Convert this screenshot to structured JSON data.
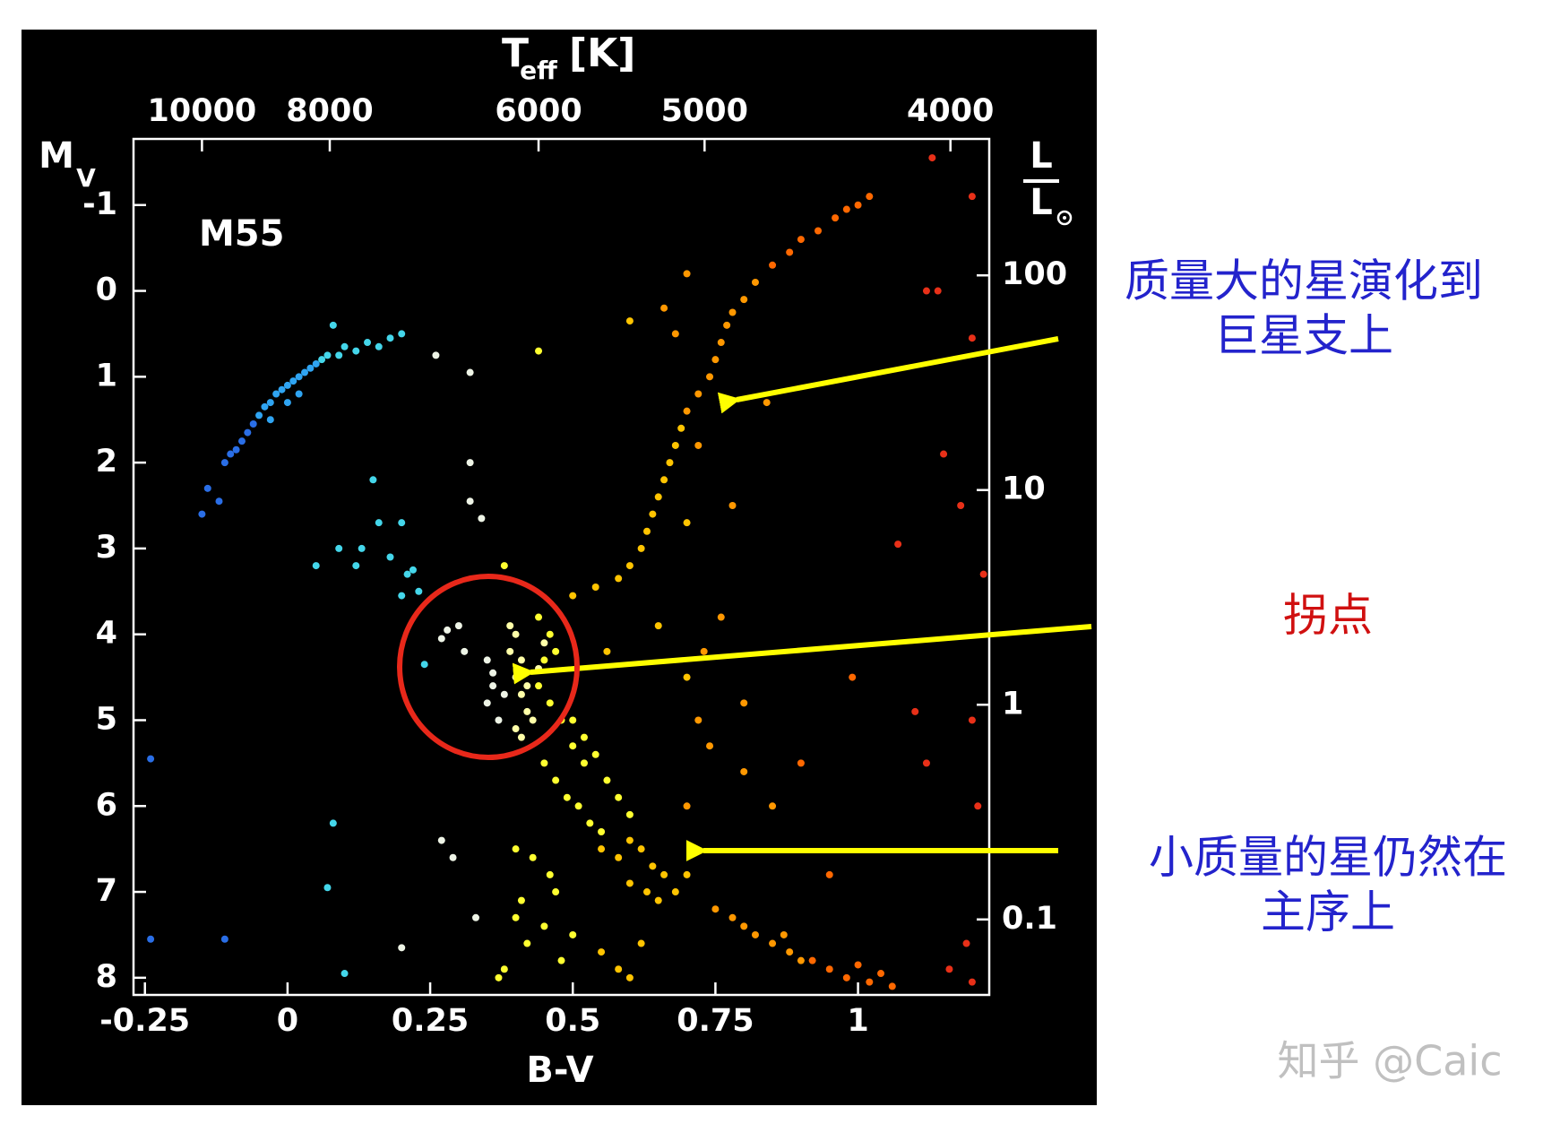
{
  "chart_data": {
    "type": "scatter",
    "label": "M55",
    "xlabel": "B-V",
    "ylabel": {
      "main": "M",
      "sub": "V"
    },
    "x2label": {
      "main": "T",
      "sub": "eff",
      "unit": "[K]"
    },
    "y2label": {
      "num": "L",
      "den": "L"
    },
    "xlim": [
      -0.27,
      1.23
    ],
    "xticks": [
      -0.25,
      0,
      0.25,
      0.5,
      0.75,
      1
    ],
    "ylim": [
      8.2,
      -1.77
    ],
    "yticks": [
      -1,
      0,
      1,
      2,
      3,
      4,
      5,
      6,
      7,
      8
    ],
    "x2ticks": [
      10000,
      8000,
      6000,
      5000,
      4000
    ],
    "x2tick_bv": [
      -0.15,
      0.074,
      0.44,
      0.731,
      1.162
    ],
    "y2lim": [
      0.0445,
      432
    ],
    "y2ticks": [
      0.1,
      1,
      10,
      100
    ],
    "y2log": true,
    "background": "#000000",
    "axis_color": "#ffffff",
    "series": [
      {
        "color": "#2a6ee6",
        "x": [
          -0.24,
          -0.24,
          -0.11,
          -0.15,
          -0.14,
          -0.12,
          -0.11,
          -0.1,
          -0.09,
          -0.08,
          -0.07,
          -0.06
        ],
        "y": [
          5.45,
          7.55,
          7.55,
          2.6,
          2.3,
          2.45,
          2.0,
          1.9,
          1.85,
          1.75,
          1.65,
          1.55
        ]
      },
      {
        "color": "#2fa4f2",
        "x": [
          -0.05,
          -0.04,
          -0.03,
          -0.02,
          -0.01,
          0,
          0.01,
          0.02,
          0.03,
          0.04,
          0.05,
          -0.03,
          0,
          0.02
        ],
        "y": [
          1.45,
          1.35,
          1.3,
          1.2,
          1.15,
          1.1,
          1.05,
          1.0,
          0.95,
          0.9,
          0.85,
          1.5,
          1.3,
          1.2
        ]
      },
      {
        "color": "#44d6ea",
        "x": [
          0.06,
          0.07,
          0.08,
          0.09,
          0.1,
          0.12,
          0.14,
          0.16,
          0.18,
          0.2,
          0.05,
          0.09,
          0.15,
          0.16,
          0.2,
          0.12,
          0.18,
          0.21,
          0.22,
          0.23,
          0.2,
          0.13,
          0.08,
          0.07,
          0.1,
          0.24
        ],
        "y": [
          0.8,
          0.75,
          0.4,
          0.75,
          0.65,
          0.7,
          0.6,
          0.65,
          0.55,
          0.5,
          3.2,
          3.0,
          2.2,
          2.7,
          2.7,
          3.2,
          3.1,
          3.3,
          3.25,
          3.5,
          3.55,
          3.0,
          6.2,
          6.95,
          7.95,
          4.35
        ]
      },
      {
        "color": "#eef4e6",
        "x": [
          0.26,
          0.32,
          0.32,
          0.32,
          0.34,
          0.3,
          0.27,
          0.28,
          0.35,
          0.36,
          0.35,
          0.37,
          0.36,
          0.38,
          0.33,
          0.2,
          0.27,
          0.29,
          0.31
        ],
        "y": [
          0.75,
          0.95,
          2.0,
          2.45,
          2.65,
          3.9,
          4.05,
          3.95,
          4.3,
          4.6,
          4.8,
          5.0,
          4.45,
          4.7,
          7.3,
          7.65,
          6.4,
          6.6,
          4.2
        ]
      },
      {
        "color": "#ffffa8",
        "x": [
          0.39,
          0.4,
          0.41,
          0.42,
          0.43,
          0.39,
          0.4,
          0.41,
          0.42,
          0.44,
          0.45,
          0.4,
          0.41
        ],
        "y": [
          4.2,
          4.5,
          4.7,
          4.9,
          5.0,
          3.9,
          4.0,
          4.3,
          4.6,
          4.4,
          4.1,
          5.1,
          5.2
        ]
      },
      {
        "color": "#ffff30",
        "x": [
          0.44,
          0.46,
          0.48,
          0.5,
          0.52,
          0.45,
          0.47,
          0.49,
          0.51,
          0.53,
          0.55,
          0.5,
          0.52,
          0.54,
          0.56,
          0.58,
          0.6,
          0.4,
          0.42,
          0.45,
          0.48,
          0.38,
          0.41,
          0.43,
          0.47,
          0.5,
          0.46,
          0.37,
          0.4,
          0.38,
          0.44,
          0.45,
          0.46,
          0.44,
          0.47
        ],
        "y": [
          4.6,
          4.8,
          5.0,
          5.3,
          5.5,
          5.5,
          5.7,
          5.9,
          6.0,
          6.2,
          6.3,
          5.0,
          5.2,
          5.4,
          5.7,
          5.9,
          6.1,
          7.3,
          7.6,
          7.4,
          7.8,
          7.9,
          7.1,
          6.6,
          7.0,
          7.5,
          6.8,
          8.0,
          6.5,
          3.2,
          0.7,
          4.3,
          4.0,
          3.8,
          4.2
        ]
      },
      {
        "color": "#ffc400",
        "x": [
          0.55,
          0.58,
          0.6,
          0.62,
          0.64,
          0.66,
          0.6,
          0.63,
          0.65,
          0.68,
          0.7,
          0.5,
          0.54,
          0.58,
          0.6,
          0.62,
          0.63,
          0.64,
          0.65,
          0.66,
          0.67,
          0.68,
          0.69,
          0.55,
          0.58,
          0.6,
          0.62,
          0.7,
          0.65,
          0.7,
          0.6,
          0.56
        ],
        "y": [
          6.5,
          6.6,
          6.4,
          6.5,
          6.7,
          6.8,
          6.9,
          7.0,
          7.1,
          7.0,
          6.8,
          3.55,
          3.45,
          3.35,
          3.2,
          3.0,
          2.8,
          2.6,
          2.4,
          2.2,
          2.0,
          1.8,
          1.6,
          7.7,
          7.9,
          8.0,
          7.6,
          4.5,
          3.9,
          2.7,
          0.35,
          4.2
        ]
      },
      {
        "color": "#ff9800",
        "x": [
          0.7,
          0.72,
          0.74,
          0.75,
          0.76,
          0.77,
          0.78,
          0.8,
          0.82,
          0.75,
          0.78,
          0.8,
          0.82,
          0.85,
          0.87,
          0.88,
          0.9,
          0.72,
          0.74,
          0.7,
          0.73,
          0.76,
          0.78,
          0.8,
          0.72,
          0.8,
          0.85,
          0.68,
          0.66,
          0.7,
          0.84
        ],
        "y": [
          1.4,
          1.2,
          1.0,
          0.8,
          0.6,
          0.4,
          0.25,
          0.1,
          -0.1,
          7.2,
          7.3,
          7.4,
          7.5,
          7.6,
          7.5,
          7.7,
          7.8,
          5.0,
          5.3,
          6.0,
          4.2,
          3.8,
          2.5,
          4.8,
          1.8,
          5.6,
          6.0,
          0.5,
          0.2,
          -0.2,
          1.3
        ]
      },
      {
        "color": "#ff6800",
        "x": [
          0.85,
          0.88,
          0.9,
          0.93,
          0.96,
          0.98,
          1.0,
          1.02,
          0.92,
          0.95,
          0.98,
          1.0,
          1.02,
          1.04,
          1.06,
          0.9,
          0.95,
          0.99
        ],
        "y": [
          -0.3,
          -0.45,
          -0.6,
          -0.7,
          -0.85,
          -0.95,
          -1.0,
          -1.1,
          7.8,
          7.9,
          8.0,
          7.85,
          8.05,
          7.95,
          8.1,
          5.5,
          6.8,
          4.5
        ]
      },
      {
        "color": "#e83018",
        "x": [
          1.13,
          1.2,
          1.12,
          1.14,
          1.2,
          1.18,
          1.22,
          1.15,
          1.1,
          1.2,
          1.21,
          1.19,
          1.07,
          1.12,
          1.16,
          1.2
        ],
        "y": [
          -1.55,
          -1.1,
          0.0,
          0.0,
          0.55,
          2.5,
          3.3,
          1.9,
          4.9,
          5.0,
          6.0,
          7.6,
          2.95,
          5.5,
          7.9,
          8.05
        ]
      }
    ]
  },
  "annotations": {
    "giant": [
      "质量大的星演化到",
      "巨星支上"
    ],
    "turnoff": "拐点",
    "main_sequence": [
      "小质量的星仍然在",
      "主序上"
    ],
    "watermark": "知乎 @Caic"
  }
}
